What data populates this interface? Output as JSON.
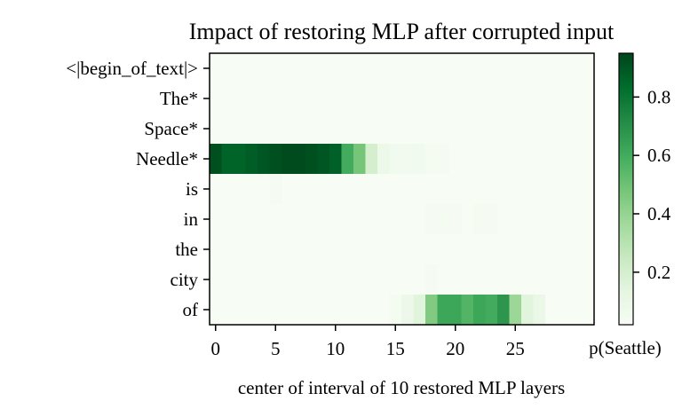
{
  "chart_data": {
    "type": "heatmap",
    "title": "Impact of restoring MLP after corrupted input",
    "xlabel": "center of interval of 10 restored MLP layers",
    "colorbar_label": "p(Seattle)",
    "y_tokens": [
      "<|begin_of_text|>",
      "The*",
      "Space*",
      "Needle*",
      "is",
      "in",
      "the",
      "city",
      "of"
    ],
    "x_ticks": [
      0,
      5,
      10,
      15,
      20,
      25
    ],
    "x_tick_labels": [
      "0",
      "5",
      "10",
      "15",
      "20",
      "25"
    ],
    "n_layers": 32,
    "colorbar_ticks": [
      0.2,
      0.4,
      0.6,
      0.8
    ],
    "colorbar_tick_labels": [
      "0.2",
      "0.4",
      "0.6",
      "0.8"
    ],
    "color_range": [
      0.02,
      0.95
    ],
    "colormap": "Greens",
    "values": [
      [
        0.02,
        0.02,
        0.02,
        0.02,
        0.02,
        0.02,
        0.02,
        0.02,
        0.02,
        0.02,
        0.02,
        0.02,
        0.02,
        0.02,
        0.02,
        0.02,
        0.02,
        0.02,
        0.02,
        0.02,
        0.02,
        0.02,
        0.02,
        0.02,
        0.02,
        0.02,
        0.02,
        0.02,
        0.02,
        0.02,
        0.02,
        0.02
      ],
      [
        0.02,
        0.02,
        0.02,
        0.02,
        0.02,
        0.02,
        0.02,
        0.02,
        0.02,
        0.02,
        0.02,
        0.02,
        0.02,
        0.02,
        0.02,
        0.02,
        0.02,
        0.02,
        0.02,
        0.02,
        0.02,
        0.02,
        0.02,
        0.02,
        0.02,
        0.02,
        0.02,
        0.02,
        0.02,
        0.02,
        0.02,
        0.02
      ],
      [
        0.02,
        0.02,
        0.02,
        0.02,
        0.02,
        0.02,
        0.02,
        0.02,
        0.02,
        0.02,
        0.02,
        0.02,
        0.02,
        0.02,
        0.02,
        0.02,
        0.02,
        0.02,
        0.02,
        0.02,
        0.02,
        0.02,
        0.02,
        0.02,
        0.02,
        0.02,
        0.02,
        0.02,
        0.02,
        0.02,
        0.02,
        0.02
      ],
      [
        0.92,
        0.86,
        0.86,
        0.88,
        0.9,
        0.92,
        0.93,
        0.93,
        0.92,
        0.9,
        0.87,
        0.6,
        0.48,
        0.2,
        0.09,
        0.06,
        0.05,
        0.06,
        0.04,
        0.03,
        0.02,
        0.02,
        0.02,
        0.02,
        0.02,
        0.02,
        0.02,
        0.02,
        0.02,
        0.02,
        0.02,
        0.02
      ],
      [
        0.02,
        0.02,
        0.02,
        0.02,
        0.02,
        0.03,
        0.02,
        0.02,
        0.02,
        0.02,
        0.02,
        0.02,
        0.02,
        0.02,
        0.02,
        0.02,
        0.02,
        0.02,
        0.02,
        0.02,
        0.02,
        0.02,
        0.02,
        0.02,
        0.02,
        0.02,
        0.02,
        0.02,
        0.02,
        0.02,
        0.02,
        0.02
      ],
      [
        0.02,
        0.02,
        0.02,
        0.02,
        0.02,
        0.02,
        0.02,
        0.02,
        0.02,
        0.02,
        0.02,
        0.02,
        0.02,
        0.02,
        0.02,
        0.02,
        0.02,
        0.02,
        0.03,
        0.04,
        0.03,
        0.02,
        0.04,
        0.03,
        0.02,
        0.02,
        0.02,
        0.02,
        0.02,
        0.02,
        0.02,
        0.02
      ],
      [
        0.02,
        0.02,
        0.02,
        0.02,
        0.02,
        0.02,
        0.02,
        0.02,
        0.02,
        0.02,
        0.02,
        0.02,
        0.02,
        0.02,
        0.02,
        0.02,
        0.02,
        0.02,
        0.02,
        0.02,
        0.02,
        0.02,
        0.02,
        0.02,
        0.02,
        0.02,
        0.02,
        0.02,
        0.02,
        0.02,
        0.02,
        0.02
      ],
      [
        0.02,
        0.02,
        0.02,
        0.02,
        0.02,
        0.02,
        0.02,
        0.02,
        0.02,
        0.02,
        0.02,
        0.02,
        0.02,
        0.02,
        0.02,
        0.02,
        0.02,
        0.02,
        0.03,
        0.02,
        0.02,
        0.02,
        0.02,
        0.02,
        0.02,
        0.02,
        0.02,
        0.02,
        0.02,
        0.02,
        0.02,
        0.02
      ],
      [
        0.02,
        0.02,
        0.02,
        0.02,
        0.02,
        0.02,
        0.02,
        0.02,
        0.02,
        0.02,
        0.02,
        0.02,
        0.02,
        0.02,
        0.02,
        0.04,
        0.08,
        0.15,
        0.45,
        0.62,
        0.62,
        0.56,
        0.62,
        0.6,
        0.68,
        0.38,
        0.15,
        0.1,
        0.02,
        0.02,
        0.02,
        0.02
      ]
    ]
  }
}
